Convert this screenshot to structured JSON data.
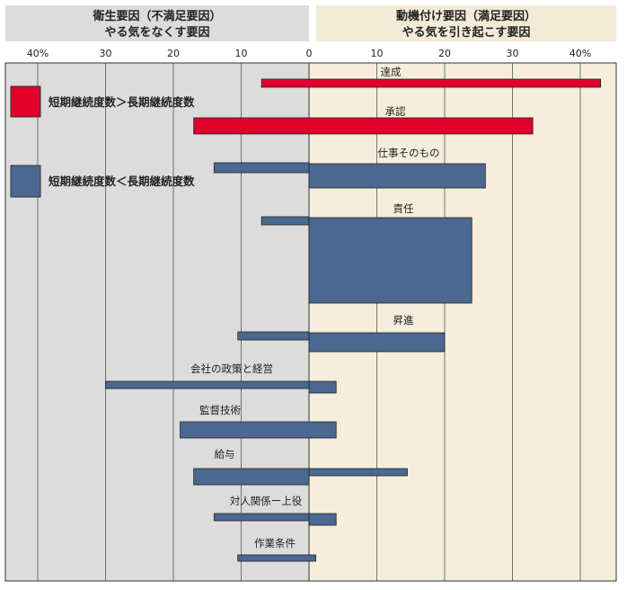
{
  "header": {
    "left": {
      "line1": "衛生要因（不満足要因）",
      "line2": "やる気をなくす要因",
      "bg": "#dcdcdc"
    },
    "right": {
      "line1": "動機付け要因（満足要因）",
      "line2": "やる気を引き起こす要因",
      "bg": "#f3ead8"
    }
  },
  "legend": [
    {
      "label": "短期継続度数＞長期継続度数",
      "color": "#e0002a"
    },
    {
      "label": "短期継続度数＜長期継続度数",
      "color": "#4a6890"
    }
  ],
  "chart_data": {
    "type": "bar",
    "orientation": "horizontal-diverging",
    "x_axis": {
      "range_left": [
        0,
        45
      ],
      "range_right": [
        0,
        45
      ],
      "ticks_left": [
        "40%",
        "30",
        "20",
        "10"
      ],
      "ticks_right": [
        "0",
        "10",
        "20",
        "30",
        "40%"
      ],
      "grid": true
    },
    "categories": [
      {
        "label": "達成",
        "group": "motivator",
        "color": "#e0002a",
        "bars": [
          {
            "kind": "thin",
            "left": 7,
            "right": 43
          }
        ]
      },
      {
        "label": "承認",
        "group": "motivator",
        "color": "#e0002a",
        "bars": [
          {
            "kind": "thick",
            "left": 17,
            "right": 33
          }
        ]
      },
      {
        "label": "仕事そのもの",
        "group": "motivator",
        "color": "#4a6890",
        "bars": [
          {
            "kind": "thin",
            "left": 14,
            "right": 0
          },
          {
            "kind": "thick",
            "left": 0,
            "right": 26
          }
        ]
      },
      {
        "label": "責任",
        "group": "motivator",
        "color": "#4a6890",
        "bars": [
          {
            "kind": "thin",
            "left": 7,
            "right": 0
          },
          {
            "kind": "tall",
            "left": 0,
            "right": 24
          }
        ]
      },
      {
        "label": "昇進",
        "group": "motivator",
        "color": "#4a6890",
        "bars": [
          {
            "kind": "thin",
            "left": 10.5,
            "right": 0
          },
          {
            "kind": "thick",
            "left": 0,
            "right": 20
          }
        ]
      },
      {
        "label": "会社の政策と経営",
        "group": "hygiene",
        "color": "#4a6890",
        "bars": [
          {
            "kind": "thin",
            "left": 30,
            "right": 0
          },
          {
            "kind": "thick",
            "left": 0,
            "right": 4
          }
        ]
      },
      {
        "label": "監督技術",
        "group": "hygiene",
        "color": "#4a6890",
        "bars": [
          {
            "kind": "thick",
            "left": 19,
            "right": 4
          }
        ]
      },
      {
        "label": "給与",
        "group": "hygiene",
        "color": "#4a6890",
        "bars": [
          {
            "kind": "thick",
            "left": 17,
            "right": 0
          },
          {
            "kind": "thin",
            "left": 0,
            "right": 14.5
          }
        ]
      },
      {
        "label": "対人関係ー上役",
        "group": "hygiene",
        "color": "#4a6890",
        "bars": [
          {
            "kind": "thin",
            "left": 14,
            "right": 0
          },
          {
            "kind": "thick",
            "left": 0,
            "right": 4
          }
        ]
      },
      {
        "label": "作業条件",
        "group": "hygiene",
        "color": "#4a6890",
        "bars": [
          {
            "kind": "thin",
            "left": 10.5,
            "right": 1
          }
        ]
      }
    ]
  }
}
